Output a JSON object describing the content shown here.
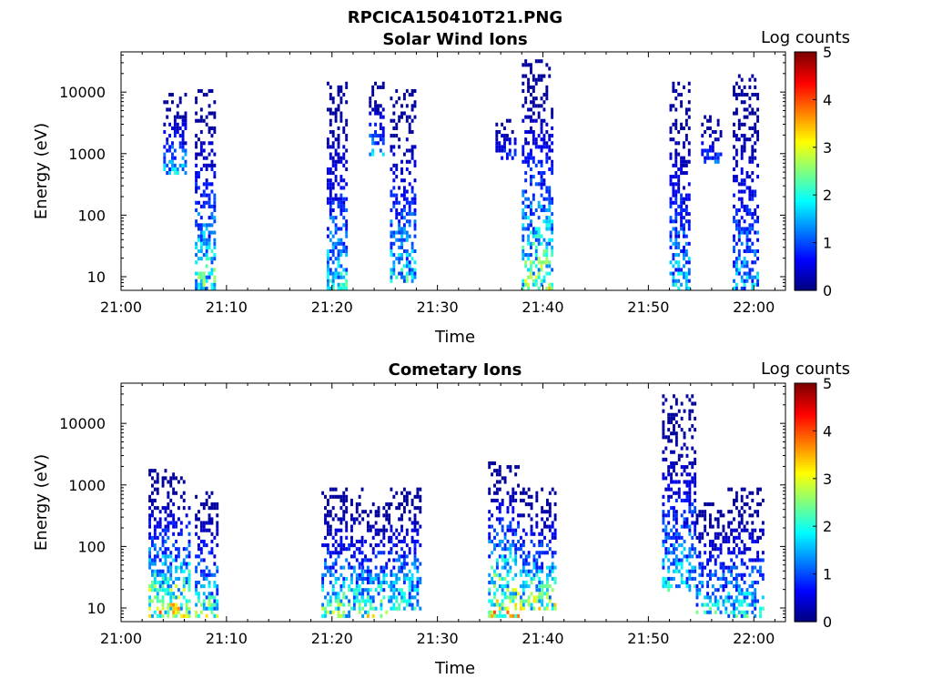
{
  "figure_title": "RPCICA150410T21.PNG",
  "colorbar": {
    "label": "Log counts",
    "ticks": [
      0,
      1,
      2,
      3,
      4,
      5
    ],
    "range": [
      0,
      5
    ],
    "colormap": [
      "#00008f",
      "#0000ff",
      "#0080ff",
      "#00ffff",
      "#80ff80",
      "#ffff00",
      "#ff8000",
      "#ff0000",
      "#800000"
    ]
  },
  "chart_data": [
    {
      "type": "heatmap",
      "title": "Solar Wind Ions",
      "xlabel": "Time",
      "ylabel": "Energy (eV)",
      "x_ticks": [
        "21:00",
        "21:10",
        "21:20",
        "21:30",
        "21:40",
        "21:50",
        "22:00"
      ],
      "x_range_min": [
        0,
        63
      ],
      "y_ticks": [
        "10",
        "100",
        "1000",
        "10000"
      ],
      "y_scale": "log",
      "y_range": [
        6,
        45000
      ],
      "bursts": [
        {
          "t_min": 4.0,
          "t_max": 6.2,
          "e_min": 500,
          "e_max": 9000,
          "peak": 2.0
        },
        {
          "t_min": 7.0,
          "t_max": 8.8,
          "e_min": 6,
          "e_max": 11000,
          "peak": 2.8
        },
        {
          "t_min": 19.5,
          "t_max": 21.5,
          "e_min": 6,
          "e_max": 14000,
          "peak": 2.3
        },
        {
          "t_min": 23.5,
          "t_max": 25.0,
          "e_min": 1000,
          "e_max": 13000,
          "peak": 1.8
        },
        {
          "t_min": 25.5,
          "t_max": 28.0,
          "e_min": 8,
          "e_max": 10000,
          "peak": 2.4
        },
        {
          "t_min": 35.5,
          "t_max": 37.5,
          "e_min": 800,
          "e_max": 3500,
          "peak": 1.2
        },
        {
          "t_min": 38.0,
          "t_max": 41.0,
          "e_min": 6,
          "e_max": 30000,
          "peak": 3.2
        },
        {
          "t_min": 52.0,
          "t_max": 53.8,
          "e_min": 6,
          "e_max": 14000,
          "peak": 2.1
        },
        {
          "t_min": 55.0,
          "t_max": 57.0,
          "e_min": 700,
          "e_max": 4000,
          "peak": 1.3
        },
        {
          "t_min": 58.0,
          "t_max": 60.5,
          "e_min": 6,
          "e_max": 18000,
          "peak": 2.0
        }
      ]
    },
    {
      "type": "heatmap",
      "title": "Cometary Ions",
      "xlabel": "Time",
      "ylabel": "Energy (eV)",
      "x_ticks": [
        "21:00",
        "21:10",
        "21:20",
        "21:30",
        "21:40",
        "21:50",
        "22:00"
      ],
      "x_range_min": [
        0,
        63
      ],
      "y_ticks": [
        "10",
        "100",
        "1000",
        "10000"
      ],
      "y_scale": "log",
      "y_range": [
        6,
        45000
      ],
      "bursts": [
        {
          "t_min": 2.6,
          "t_max": 6.5,
          "e_min": 7,
          "e_max": 1600,
          "peak": 3.8
        },
        {
          "t_min": 7.0,
          "t_max": 9.2,
          "e_min": 7,
          "e_max": 700,
          "peak": 3.0
        },
        {
          "t_min": 19.0,
          "t_max": 22.8,
          "e_min": 7,
          "e_max": 800,
          "peak": 3.0
        },
        {
          "t_min": 22.8,
          "t_max": 25.5,
          "e_min": 7,
          "e_max": 500,
          "peak": 3.2
        },
        {
          "t_min": 25.5,
          "t_max": 28.3,
          "e_min": 10,
          "e_max": 900,
          "peak": 2.6
        },
        {
          "t_min": 34.8,
          "t_max": 37.8,
          "e_min": 7,
          "e_max": 2200,
          "peak": 4.0
        },
        {
          "t_min": 37.8,
          "t_max": 41.2,
          "e_min": 10,
          "e_max": 800,
          "peak": 3.2
        },
        {
          "t_min": 51.3,
          "t_max": 54.5,
          "e_min": 20,
          "e_max": 27000,
          "peak": 2.2
        },
        {
          "t_min": 54.5,
          "t_max": 57.5,
          "e_min": 8,
          "e_max": 500,
          "peak": 2.4
        },
        {
          "t_min": 57.5,
          "t_max": 60.8,
          "e_min": 7,
          "e_max": 800,
          "peak": 2.4
        }
      ]
    }
  ]
}
